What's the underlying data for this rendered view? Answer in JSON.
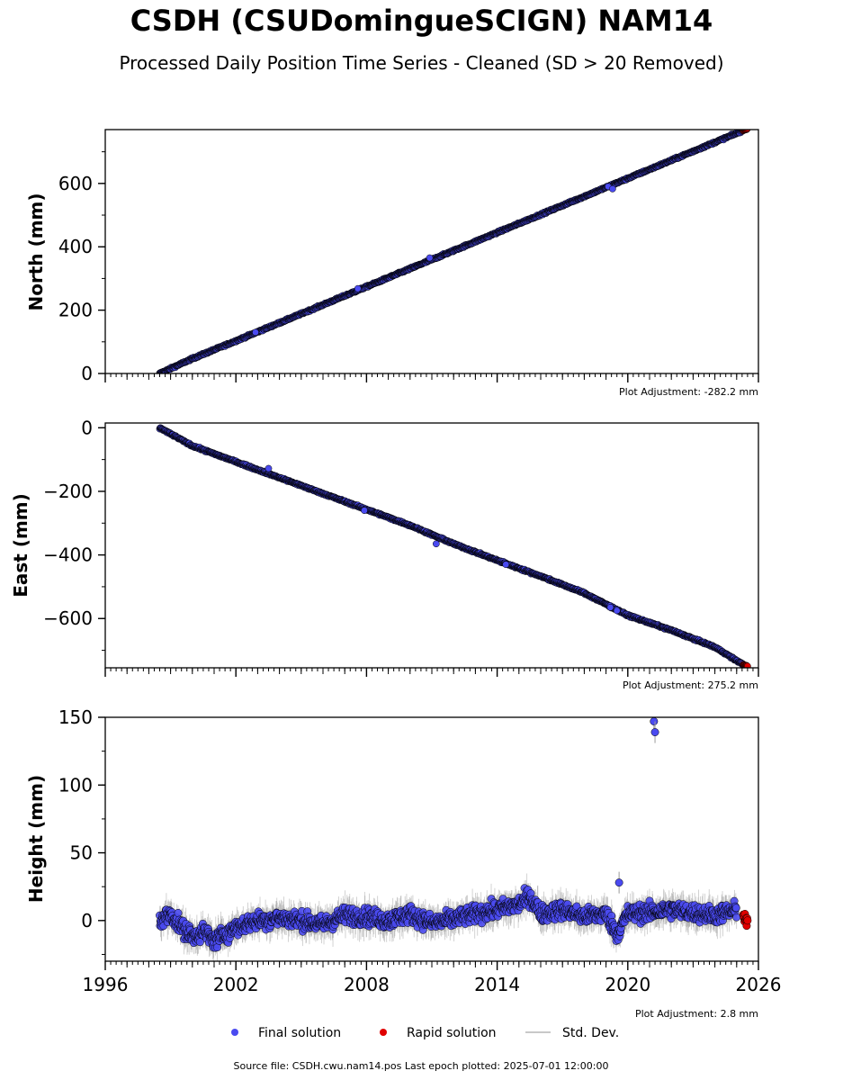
{
  "title": "CSDH (CSUDomingueSCIGN) NAM14",
  "subtitle": "Processed Daily Position Time Series - Cleaned (SD > 20 Removed)",
  "footer": "Source file: CSDH.cwu.nam14.pos  Last epoch plotted: 2025-07-01 12:00:00",
  "legend": {
    "final": "Final solution",
    "rapid": "Rapid solution",
    "std": "Std. Dev."
  },
  "colors": {
    "final": "#4a4af0",
    "rapid": "#e00000",
    "std": "#c8c8c8",
    "edge": "#000000"
  },
  "chart_data": [
    {
      "type": "scatter",
      "ylabel": "North (mm)",
      "adjustment": "Plot Adjustment: -282.2 mm",
      "xlim": [
        1996,
        2026
      ],
      "ylim": [
        0,
        770
      ],
      "yticks": [
        0,
        200,
        400,
        600
      ],
      "ytick_labels": [
        "0",
        "200",
        "400",
        "600"
      ],
      "series": [
        {
          "name": "Final solution",
          "x": [
            1998.5,
            2000,
            2002,
            2004,
            2006,
            2008,
            2010,
            2012,
            2014,
            2016,
            2018,
            2020,
            2022,
            2024,
            2025.3
          ],
          "y": [
            0,
            47,
            103,
            160,
            217,
            274,
            331,
            388,
            445,
            502,
            559,
            616,
            673,
            730,
            767
          ]
        },
        {
          "name": "Rapid solution",
          "x": [
            2025.3,
            2025.5
          ],
          "y": [
            767,
            772
          ]
        }
      ],
      "outliers": {
        "x": [
          2002.9,
          2007.6,
          2010.9,
          2019.1,
          2019.3
        ],
        "y": [
          130,
          268,
          365,
          590,
          583
        ]
      }
    },
    {
      "type": "scatter",
      "ylabel": "East (mm)",
      "adjustment": "Plot Adjustment: 275.2 mm",
      "xlim": [
        1996,
        2026
      ],
      "ylim": [
        -755,
        15
      ],
      "yticks": [
        -600,
        -400,
        -200,
        0
      ],
      "ytick_labels": [
        "−600",
        "−400",
        "−200",
        "0"
      ],
      "series": [
        {
          "name": "Final solution",
          "x": [
            1998.5,
            2000,
            2002,
            2004,
            2006,
            2008,
            2010,
            2012,
            2014,
            2016,
            2018,
            2020,
            2022,
            2024,
            2025.3
          ],
          "y": [
            0,
            -57,
            -107,
            -157,
            -207,
            -257,
            -307,
            -365,
            -417,
            -467,
            -520,
            -590,
            -637,
            -690,
            -745
          ]
        },
        {
          "name": "Rapid solution",
          "x": [
            2025.3,
            2025.5
          ],
          "y": [
            -745,
            -750
          ]
        }
      ],
      "outliers": {
        "x": [
          2003.5,
          2007.9,
          2011.2,
          2014.4,
          2019.2,
          2019.5
        ],
        "y": [
          -128,
          -260,
          -365,
          -430,
          -565,
          -575
        ]
      }
    },
    {
      "type": "scatter",
      "ylabel": "Height (mm)",
      "adjustment": "Plot Adjustment: 2.8 mm",
      "xlim": [
        1996,
        2026
      ],
      "ylim": [
        -30,
        150
      ],
      "yticks": [
        0,
        50,
        100,
        150
      ],
      "ytick_labels": [
        "0",
        "50",
        "100",
        "150"
      ],
      "xticks": [
        1996,
        2002,
        2008,
        2014,
        2020,
        2026
      ],
      "xtick_labels": [
        "1996",
        "2002",
        "2008",
        "2014",
        "2020",
        "2026"
      ],
      "series": [
        {
          "name": "Final solution",
          "x": [
            1998.5,
            1999,
            1999.5,
            2000,
            2000.5,
            2001,
            2002,
            2003,
            2004,
            2005,
            2006,
            2007,
            2008,
            2009,
            2010,
            2011,
            2012,
            2013,
            2014,
            2015,
            2015.5,
            2016,
            2017,
            2018,
            2019,
            2019.5,
            2020,
            2021,
            2022,
            2023,
            2024,
            2025
          ],
          "y": [
            0,
            5,
            -5,
            -12,
            -8,
            -15,
            -5,
            0,
            2,
            0,
            -3,
            4,
            3,
            0,
            5,
            -2,
            1,
            5,
            8,
            12,
            18,
            5,
            8,
            3,
            5,
            -10,
            5,
            6,
            8,
            6,
            4,
            8
          ]
        },
        {
          "name": "Rapid solution",
          "x": [
            2025.3,
            2025.4,
            2025.5
          ],
          "y": [
            5,
            2,
            -1
          ]
        }
      ],
      "outliers": {
        "x": [
          2021.2,
          2021.25,
          2019.6
        ],
        "y": [
          147,
          139,
          28
        ]
      }
    }
  ]
}
